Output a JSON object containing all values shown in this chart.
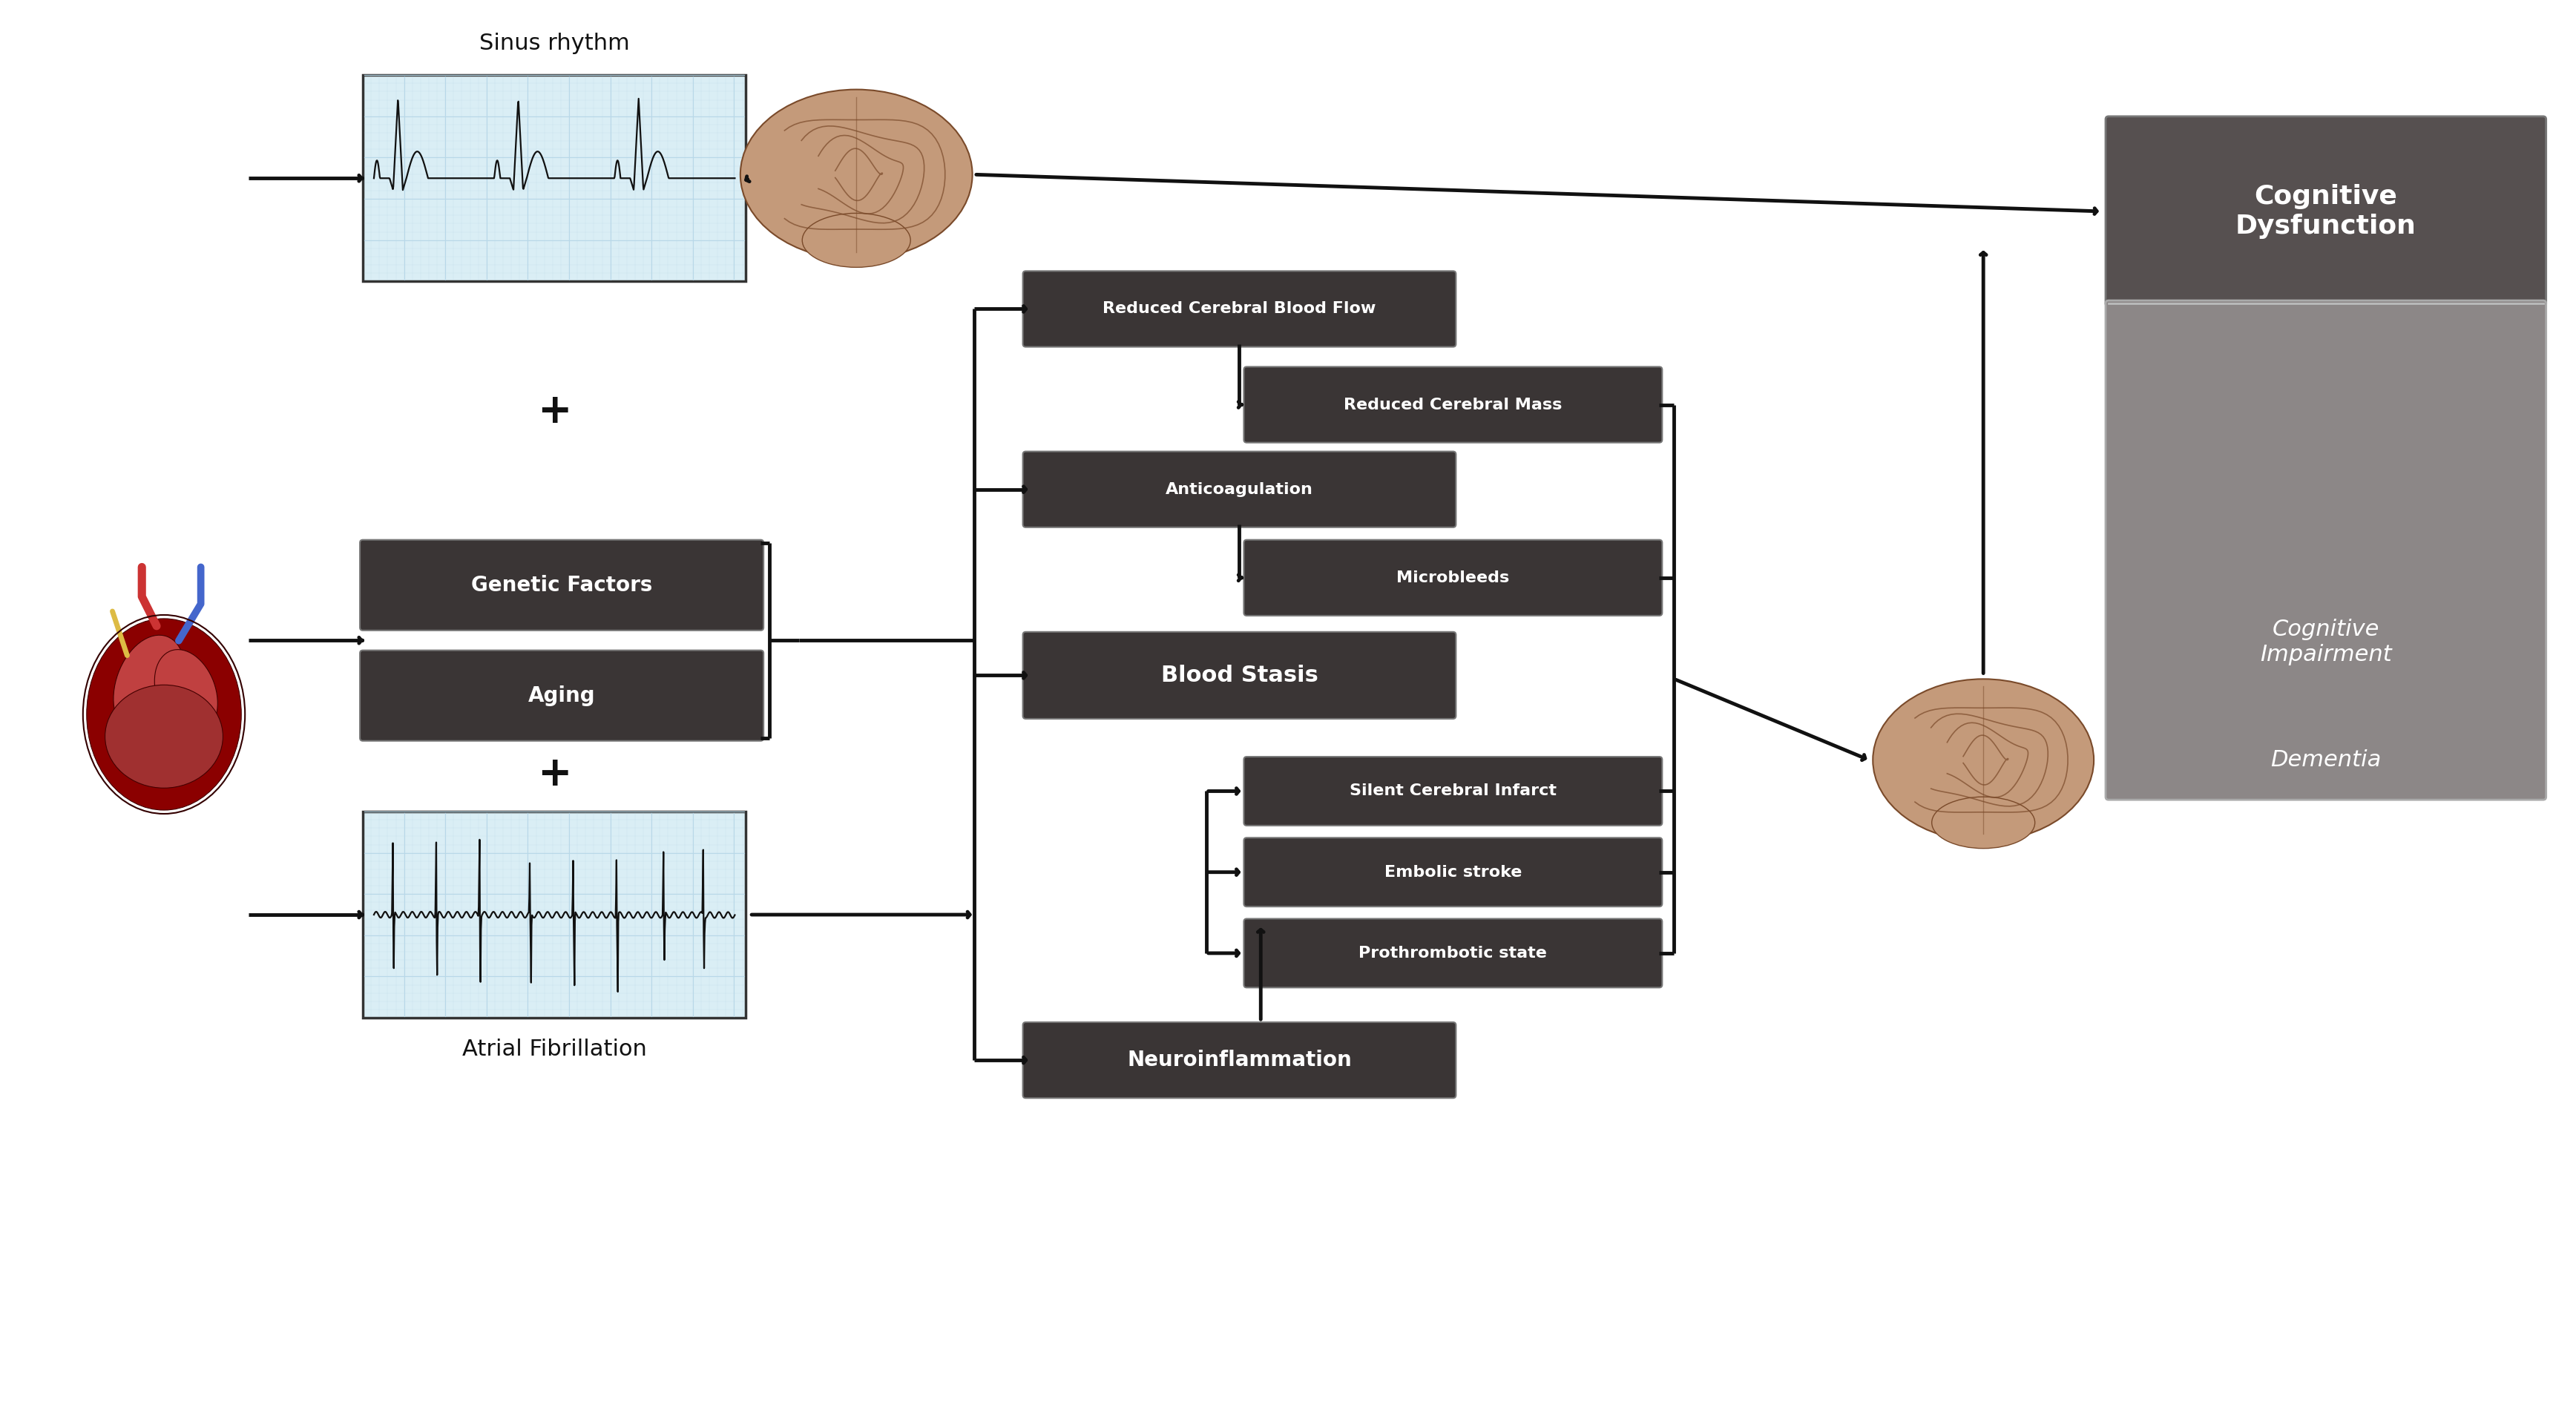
{
  "bg_color": "#ffffff",
  "dark_box_color": "#3a3535",
  "cog_dys_color": "#565050",
  "cog_imp_color": "#8c8787",
  "ecg_grid_color": "#b8d8e8",
  "ecg_bg_color": "#daeef5",
  "ecg_line_color": "#111111",
  "box_edge_color": "#888888",
  "arrow_color": "#111111",
  "line_width": 3.5,
  "boxes": {
    "genetic_factors": {
      "label": "Genetic Factors",
      "fontsize": 20,
      "bold": true
    },
    "aging": {
      "label": "Aging",
      "fontsize": 20,
      "bold": true
    },
    "reduced_cbf": {
      "label": "Reduced Cerebral Blood Flow",
      "fontsize": 16,
      "bold": true
    },
    "reduced_cm": {
      "label": "Reduced Cerebral Mass",
      "fontsize": 16,
      "bold": true
    },
    "anticoagulation": {
      "label": "Anticoagulation",
      "fontsize": 16,
      "bold": true
    },
    "microbleeds": {
      "label": "Microbleeds",
      "fontsize": 16,
      "bold": true
    },
    "blood_stasis": {
      "label": "Blood Stasis",
      "fontsize": 22,
      "bold": true
    },
    "sci": {
      "label": "Silent Cerebral Infarct",
      "fontsize": 16,
      "bold": true
    },
    "embolic": {
      "label": "Embolic stroke",
      "fontsize": 16,
      "bold": true
    },
    "prothrombotic": {
      "label": "Prothrombotic state",
      "fontsize": 16,
      "bold": true
    },
    "neuroinflammation": {
      "label": "Neuroinflammation",
      "fontsize": 20,
      "bold": true
    },
    "cog_dysfunction": {
      "label": "Cognitive\nDysfunction",
      "fontsize": 26,
      "bold": true
    },
    "cog_impairment": {
      "label": "Cognitive\nImpairment",
      "fontsize": 22,
      "bold": false,
      "italic": true
    },
    "dementia": {
      "label": "Dementia",
      "fontsize": 22,
      "bold": false,
      "italic": true
    }
  },
  "sinus_text": "Sinus rhythm",
  "sinus_fontsize": 22,
  "af_text": "Atrial Fibrillation",
  "af_fontsize": 22,
  "plus_fontsize": 40
}
